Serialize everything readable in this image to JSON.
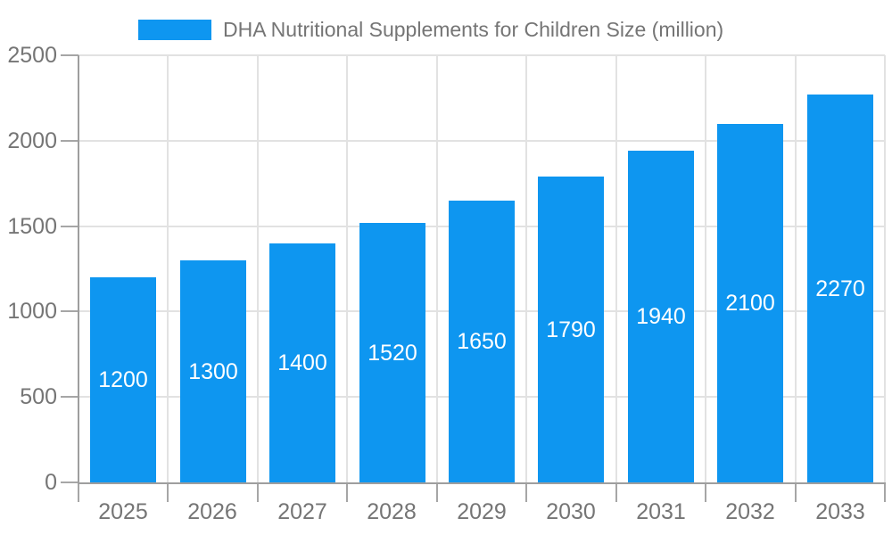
{
  "chart_data": {
    "type": "bar",
    "title": "DHA Nutritional Supplements for Children Size (million)",
    "categories": [
      "2025",
      "2026",
      "2027",
      "2028",
      "2029",
      "2030",
      "2031",
      "2032",
      "2033"
    ],
    "values": [
      1200,
      1300,
      1400,
      1520,
      1650,
      1790,
      1940,
      2100,
      2270
    ],
    "xlabel": "",
    "ylabel": "",
    "ylim": [
      0,
      2500
    ],
    "yticks": [
      0,
      500,
      1000,
      1500,
      2000,
      2500
    ],
    "grid": true,
    "legend_position": "top",
    "bar_value_labels_shown": true,
    "colors": {
      "bar": "#0e96f0",
      "bar_label": "#ffffff",
      "axis_text": "#757575",
      "axis_line": "#9e9e9e",
      "tick_line": "#a6a6a6",
      "gridline": "#e2e2e2",
      "background": "#ffffff"
    }
  }
}
